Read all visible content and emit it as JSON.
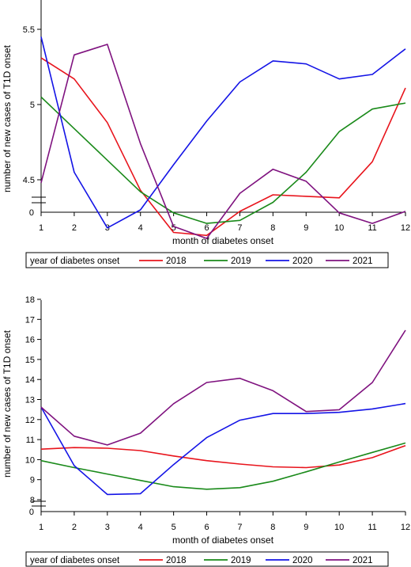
{
  "chart_data": [
    {
      "type": "line",
      "xlabel": "month of diabetes onset",
      "ylabel": "number of new cases of T1D onset",
      "x": [
        1,
        2,
        3,
        4,
        5,
        6,
        7,
        8,
        9,
        10,
        11,
        12
      ],
      "ylim": [
        3.7,
        6.5
      ],
      "yticks": [
        "4",
        "4.5",
        "5",
        "5.5",
        "6"
      ],
      "ybreak_label": "0",
      "legend_title": "year of diabetes onset",
      "legend_position": "bottom",
      "series": [
        {
          "name": "2018",
          "color": "#e8141c",
          "values": [
            5.31,
            5.17,
            4.88,
            4.43,
            4.15,
            4.13,
            4.29,
            4.4,
            4.39,
            4.38,
            4.62,
            5.11
          ]
        },
        {
          "name": "2019",
          "color": "#1a8a1a",
          "values": [
            5.05,
            4.84,
            4.63,
            4.42,
            4.28,
            4.21,
            4.23,
            4.35,
            4.55,
            4.82,
            4.97,
            5.01
          ]
        },
        {
          "name": "2020",
          "color": "#1414e6",
          "values": [
            5.45,
            4.55,
            4.18,
            4.3,
            4.6,
            4.89,
            5.15,
            5.29,
            5.27,
            5.17,
            5.2,
            5.37
          ]
        },
        {
          "name": "2021",
          "color": "#7f127f",
          "values": [
            4.48,
            5.33,
            5.4,
            4.74,
            4.19,
            4.11,
            4.41,
            4.57,
            4.49,
            4.28,
            4.21,
            4.29
          ]
        }
      ]
    },
    {
      "type": "line",
      "xlabel": "month of diabetes onset",
      "ylabel": "number of new cases of T1D onset",
      "x": [
        1,
        2,
        3,
        4,
        5,
        6,
        7,
        8,
        9,
        10,
        11,
        12
      ],
      "ylim": [
        7.8,
        18
      ],
      "yticks": [
        "8",
        "9",
        "10",
        "11",
        "12",
        "13",
        "14",
        "15",
        "16",
        "17",
        "18"
      ],
      "ybreak_label": "0",
      "legend_title": "year of diabetes onset",
      "legend_position": "bottom",
      "series": [
        {
          "name": "2018",
          "color": "#e8141c",
          "values": [
            10.52,
            10.6,
            10.57,
            10.45,
            10.18,
            9.95,
            9.78,
            9.64,
            9.6,
            9.73,
            10.1,
            10.7
          ]
        },
        {
          "name": "2019",
          "color": "#1a8a1a",
          "values": [
            9.95,
            9.6,
            9.28,
            8.96,
            8.65,
            8.52,
            8.6,
            8.92,
            9.39,
            9.88,
            10.36,
            10.83
          ]
        },
        {
          "name": "2020",
          "color": "#1414e6",
          "values": [
            12.62,
            9.7,
            8.26,
            8.3,
            9.75,
            11.1,
            11.97,
            12.3,
            12.3,
            12.36,
            12.53,
            12.8
          ]
        },
        {
          "name": "2021",
          "color": "#7f127f",
          "values": [
            12.62,
            11.17,
            10.73,
            11.32,
            12.79,
            13.85,
            14.06,
            13.44,
            12.4,
            12.49,
            13.85,
            16.46
          ]
        }
      ]
    }
  ]
}
